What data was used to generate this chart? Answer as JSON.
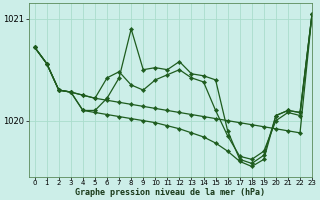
{
  "title": "Graphe pression niveau de la mer (hPa)",
  "bg_color": "#cceee8",
  "grid_color": "#aaddcc",
  "line_color": "#1e5c1e",
  "xlim": [
    -0.5,
    23
  ],
  "ylim": [
    1019.45,
    1021.15
  ],
  "yticks": [
    1020,
    1021
  ],
  "xticks": [
    0,
    1,
    2,
    3,
    4,
    5,
    6,
    7,
    8,
    9,
    10,
    11,
    12,
    13,
    14,
    15,
    16,
    17,
    18,
    19,
    20,
    21,
    22,
    23
  ],
  "series": [
    [
      1020.72,
      1020.56,
      1020.3,
      1020.28,
      1020.25,
      1020.22,
      1020.2,
      1020.18,
      1020.16,
      1020.14,
      1020.12,
      1020.1,
      1020.08,
      1020.06,
      1020.04,
      1020.02,
      1020.0,
      1019.98,
      1019.96,
      1019.94,
      1019.92,
      1019.9,
      1019.88,
      1021.05
    ],
    [
      1020.72,
      1020.56,
      1020.3,
      1020.28,
      1020.25,
      1020.22,
      1020.42,
      1020.48,
      1020.35,
      1020.3,
      1020.4,
      1020.45,
      1020.5,
      1020.42,
      1020.38,
      1020.1,
      1019.85,
      1019.65,
      1019.62,
      1019.7,
      1020.0,
      1020.08,
      1020.05,
      1021.05
    ],
    [
      1020.72,
      1020.56,
      1020.3,
      1020.28,
      1020.1,
      1020.1,
      1020.22,
      1020.42,
      1020.9,
      1020.5,
      1020.52,
      1020.5,
      1020.58,
      1020.46,
      1020.44,
      1020.4,
      1019.9,
      1019.62,
      1019.58,
      1019.66,
      1020.05,
      1020.1,
      1020.08,
      1021.05
    ],
    [
      1020.72,
      1020.56,
      1020.3,
      1020.28,
      1020.1,
      1020.08,
      1020.06,
      1020.04,
      1020.02,
      1020.0,
      1019.98,
      1019.95,
      1019.92,
      1019.88,
      1019.84,
      1019.78,
      1019.7,
      1019.6,
      1019.55,
      1019.62,
      1020.05,
      1020.1,
      1020.08,
      1021.05
    ]
  ]
}
